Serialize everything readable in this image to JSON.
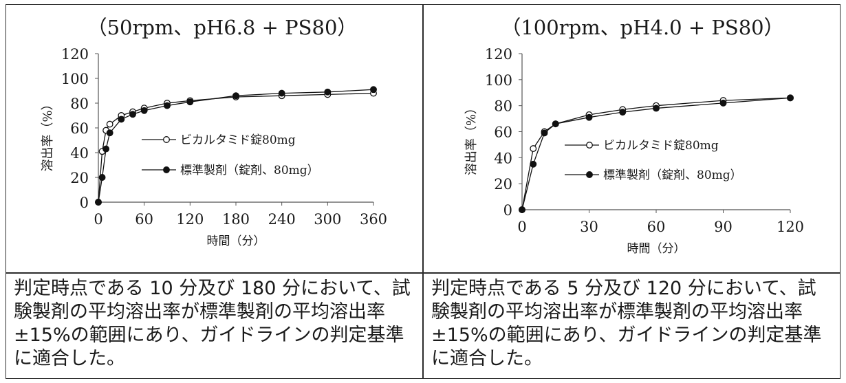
{
  "chart_data": [
    {
      "type": "line",
      "title": "（50rpm、pH6.8 + PS80）",
      "xlabel": "時間（分）",
      "ylabel": "溶出率（%）",
      "xlim": [
        0,
        360
      ],
      "ylim": [
        0,
        120
      ],
      "xticks": [
        0,
        60,
        120,
        180,
        240,
        300,
        360
      ],
      "yticks": [
        0,
        20,
        40,
        60,
        80,
        100,
        120
      ],
      "grid": false,
      "legend_placement": "center-right",
      "series": [
        {
          "name": "ビカルタミド錠80mg",
          "marker": "open-circle",
          "x": [
            0,
            5,
            10,
            15,
            30,
            45,
            60,
            90,
            120,
            180,
            240,
            300,
            360
          ],
          "y": [
            0,
            41,
            58,
            63,
            70,
            73,
            76,
            80,
            82,
            85,
            86,
            87,
            88
          ]
        },
        {
          "name": "標準製剤（錠剤、80mg）",
          "marker": "filled-circle",
          "x": [
            0,
            5,
            10,
            15,
            30,
            45,
            60,
            90,
            120,
            180,
            240,
            300,
            360
          ],
          "y": [
            0,
            20,
            43,
            56,
            67,
            71,
            74,
            78,
            81,
            86,
            88,
            89,
            91
          ]
        }
      ]
    },
    {
      "type": "line",
      "title": "（100rpm、pH4.0 + PS80）",
      "xlabel": "時間（分）",
      "ylabel": "溶出率（%）",
      "xlim": [
        0,
        120
      ],
      "ylim": [
        0,
        120
      ],
      "xticks": [
        0,
        30,
        60,
        90,
        120
      ],
      "yticks": [
        0,
        20,
        40,
        60,
        80,
        100,
        120
      ],
      "grid": false,
      "legend_placement": "center-right",
      "series": [
        {
          "name": "ビカルタミド錠80mg",
          "marker": "open-circle",
          "x": [
            0,
            5,
            10,
            15,
            30,
            45,
            60,
            90,
            120
          ],
          "y": [
            0,
            47,
            60,
            66,
            73,
            77,
            80,
            84,
            86
          ]
        },
        {
          "name": "標準製剤（錠剤、80mg）",
          "marker": "filled-circle",
          "x": [
            0,
            5,
            10,
            15,
            30,
            45,
            60,
            90,
            120
          ],
          "y": [
            0,
            35,
            59,
            66,
            71,
            75,
            78,
            82,
            86
          ]
        }
      ]
    }
  ],
  "notes": {
    "left": "判定時点である 10 分及び 180 分において、試\n験製剤の平均溶出率が標準製剤の平均溶出率\n±15%の範囲にあり、ガイドラインの判定基準\nに適合した。",
    "right": "判定時点である 5 分及び 120 分において、試\n験製剤の平均溶出率が標準製剤の平均溶出率\n±15%の範囲にあり、ガイドラインの判定基準\nに適合した。"
  }
}
